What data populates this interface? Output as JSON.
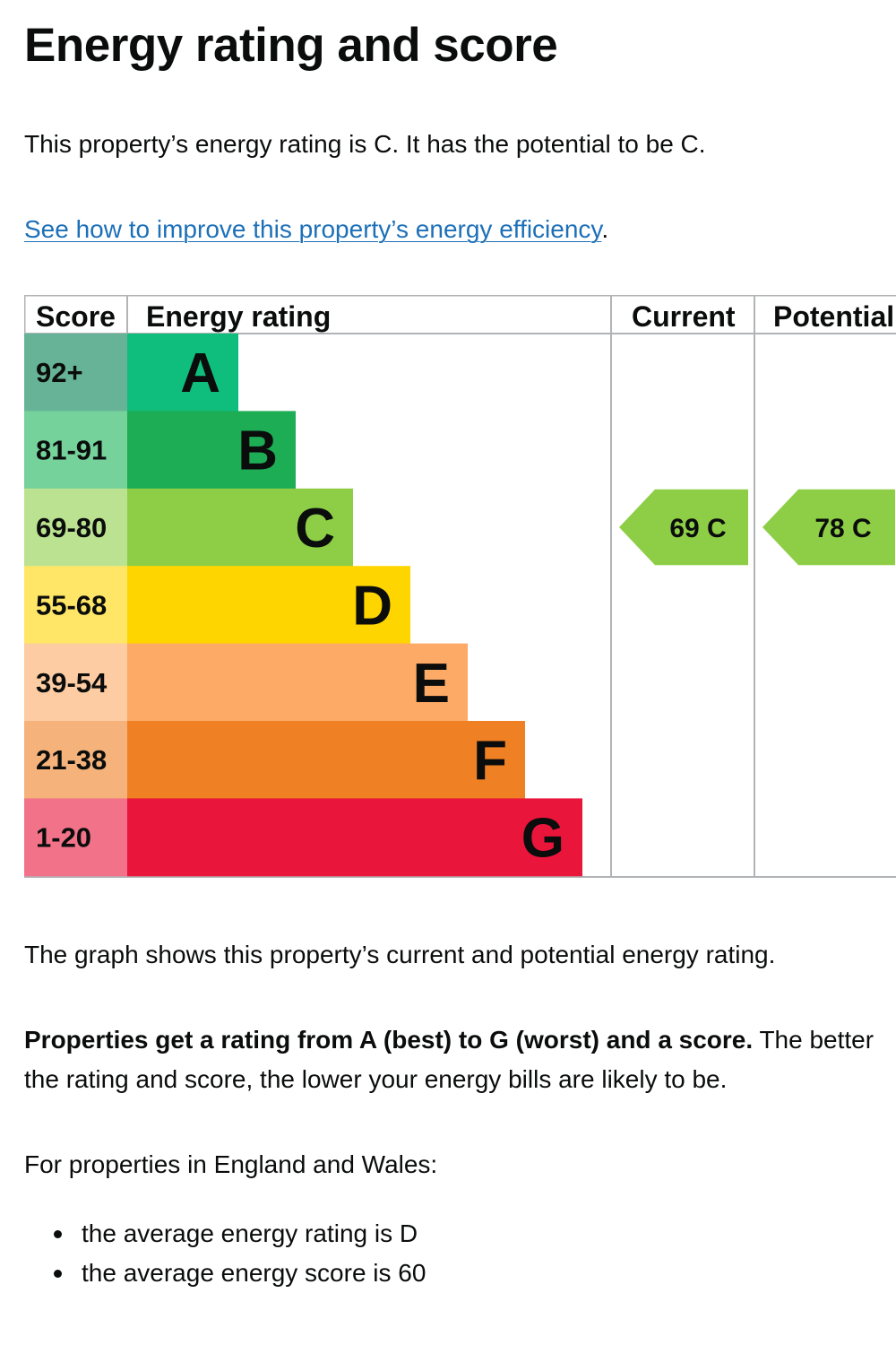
{
  "heading": "Energy rating and score",
  "summary": "This property’s energy rating is C. It has the potential to be C.",
  "improve_link": {
    "text": "See how to improve this property’s energy efficiency",
    "suffix": "."
  },
  "graph_note": "The graph shows this property’s current and potential energy rating.",
  "ratings_info": {
    "bold": "Properties get a rating from A (best) to G (worst) and a score.",
    "rest_line1": " The better",
    "line2": "the rating and score, the lower your energy bills are likely to be."
  },
  "england_wales": "For properties in England and Wales:",
  "bullets": [
    "the average energy rating is D",
    "the average energy score is 60"
  ],
  "chart_data": {
    "type": "table",
    "headers": {
      "score": "Score",
      "rating": "Energy rating",
      "current": "Current",
      "potential": "Potential"
    },
    "bands": [
      {
        "letter": "A",
        "range": "92+",
        "min": 92,
        "max": 100,
        "color": "#008054",
        "score_bg": "#66b398"
      },
      {
        "letter": "B",
        "range": "81-91",
        "min": 81,
        "max": 91,
        "color": "#19b459",
        "score_bg": "#75d29b"
      },
      {
        "letter": "C",
        "range": "69-80",
        "min": 69,
        "max": 80,
        "color": "#8dce46",
        "score_bg": "#bbe290"
      },
      {
        "letter": "D",
        "range": "55-68",
        "min": 55,
        "max": 68,
        "color": "#ffd500",
        "score_bg": "#ffe666"
      },
      {
        "letter": "E",
        "range": "39-54",
        "min": 39,
        "max": 54,
        "color": "#fcaa65",
        "score_bg": "#fdcca3"
      },
      {
        "letter": "F",
        "range": "21-38",
        "min": 21,
        "max": 38,
        "color": "#ef8023",
        "score_bg": "#f5b37b"
      },
      {
        "letter": "G",
        "range": "1-20",
        "min": 1,
        "max": 20,
        "color": "#e9153b",
        "score_bg": "#f27389"
      }
    ],
    "current": {
      "score": 69,
      "letter": "C",
      "label": "69 C"
    },
    "potential": {
      "score": 78,
      "letter": "C",
      "label": "78 C"
    },
    "colors": {
      "band_A": "#0fbe7c",
      "band_B": "#1cad55",
      "band_C": "#8dce46",
      "band_D": "#ffd500",
      "band_E": "#fcaa65",
      "band_F": "#ef8023",
      "band_G": "#e9153b",
      "grid": "#b1b4b6"
    }
  }
}
